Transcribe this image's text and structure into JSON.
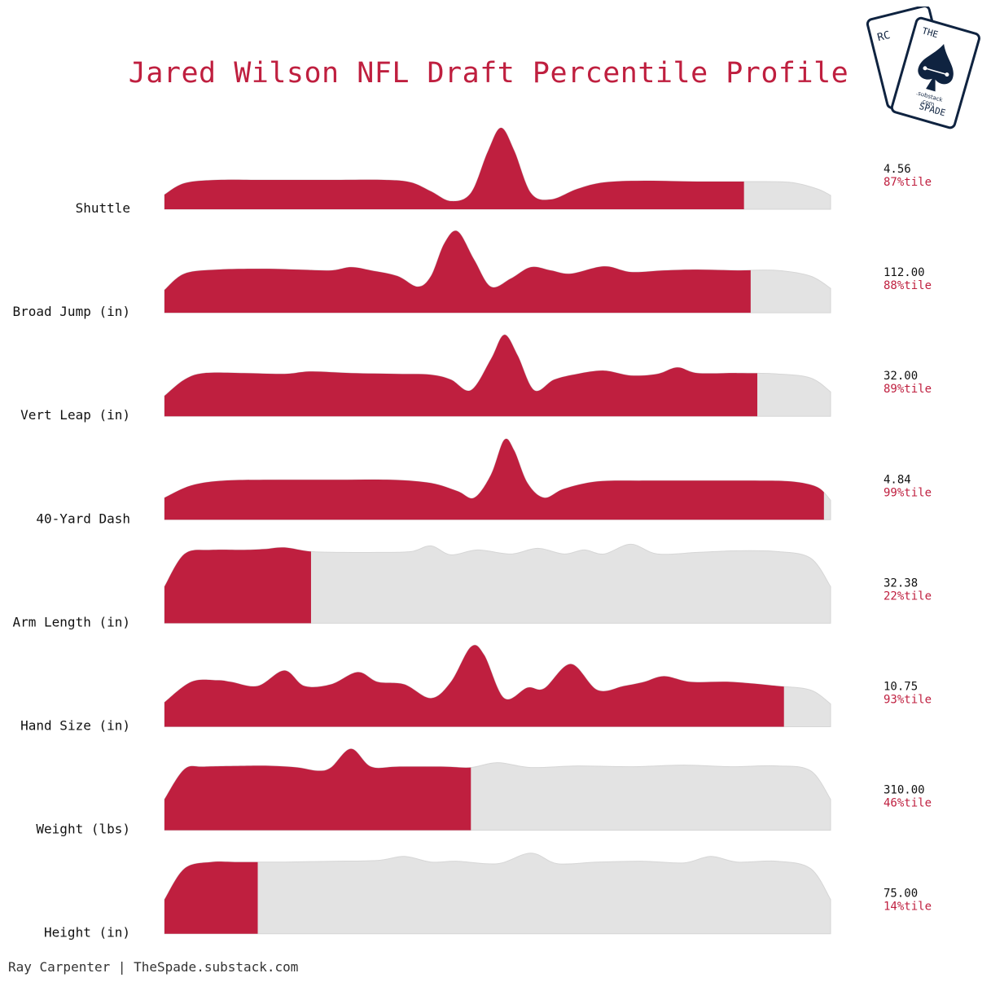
{
  "title": "Jared Wilson NFL Draft Percentile Profile",
  "credit": "Ray Carpenter | TheSpade.substack.com",
  "logo": {
    "text_the": "THE",
    "text_spade": "SPADE",
    "text_substack": ".substack",
    "text_com": ".com",
    "text_rc": "RC"
  },
  "colors": {
    "accent": "#bf1f3f",
    "background_fill": "#e3e3e3",
    "logo_navy": "#0f2340"
  },
  "chart_data": {
    "type": "ridgeline",
    "title": "Jared Wilson NFL Draft Percentile Profile",
    "metrics": [
      {
        "label": "Shuttle",
        "value": "4.56",
        "percentile": 87,
        "percentile_label": "87%tile",
        "density": [
          [
            0,
            0.18
          ],
          [
            0.03,
            0.32
          ],
          [
            0.08,
            0.36
          ],
          [
            0.15,
            0.36
          ],
          [
            0.25,
            0.36
          ],
          [
            0.33,
            0.36
          ],
          [
            0.37,
            0.33
          ],
          [
            0.4,
            0.22
          ],
          [
            0.43,
            0.1
          ],
          [
            0.46,
            0.2
          ],
          [
            0.485,
            0.7
          ],
          [
            0.505,
            1.0
          ],
          [
            0.525,
            0.72
          ],
          [
            0.55,
            0.2
          ],
          [
            0.58,
            0.12
          ],
          [
            0.62,
            0.25
          ],
          [
            0.66,
            0.33
          ],
          [
            0.72,
            0.35
          ],
          [
            0.8,
            0.34
          ],
          [
            0.88,
            0.34
          ],
          [
            0.94,
            0.33
          ],
          [
            0.98,
            0.25
          ],
          [
            1,
            0.17
          ]
        ]
      },
      {
        "label": "Broad Jump (in)",
        "value": "112.00",
        "percentile": 88,
        "percentile_label": "88%tile",
        "density": [
          [
            0,
            0.28
          ],
          [
            0.03,
            0.48
          ],
          [
            0.08,
            0.53
          ],
          [
            0.15,
            0.54
          ],
          [
            0.2,
            0.53
          ],
          [
            0.25,
            0.52
          ],
          [
            0.28,
            0.56
          ],
          [
            0.31,
            0.52
          ],
          [
            0.35,
            0.45
          ],
          [
            0.38,
            0.32
          ],
          [
            0.4,
            0.45
          ],
          [
            0.42,
            0.85
          ],
          [
            0.44,
            1.0
          ],
          [
            0.465,
            0.65
          ],
          [
            0.49,
            0.32
          ],
          [
            0.52,
            0.42
          ],
          [
            0.55,
            0.56
          ],
          [
            0.58,
            0.52
          ],
          [
            0.61,
            0.48
          ],
          [
            0.66,
            0.57
          ],
          [
            0.7,
            0.5
          ],
          [
            0.75,
            0.52
          ],
          [
            0.8,
            0.53
          ],
          [
            0.86,
            0.52
          ],
          [
            0.92,
            0.52
          ],
          [
            0.97,
            0.45
          ],
          [
            1,
            0.3
          ]
        ]
      },
      {
        "label": "Vert Leap (in)",
        "value": "32.00",
        "percentile": 89,
        "percentile_label": "89%tile",
        "density": [
          [
            0,
            0.25
          ],
          [
            0.03,
            0.45
          ],
          [
            0.06,
            0.53
          ],
          [
            0.12,
            0.53
          ],
          [
            0.18,
            0.52
          ],
          [
            0.22,
            0.55
          ],
          [
            0.28,
            0.53
          ],
          [
            0.35,
            0.52
          ],
          [
            0.4,
            0.51
          ],
          [
            0.43,
            0.45
          ],
          [
            0.46,
            0.32
          ],
          [
            0.49,
            0.7
          ],
          [
            0.51,
            1.0
          ],
          [
            0.53,
            0.75
          ],
          [
            0.555,
            0.32
          ],
          [
            0.585,
            0.45
          ],
          [
            0.62,
            0.52
          ],
          [
            0.66,
            0.56
          ],
          [
            0.7,
            0.5
          ],
          [
            0.74,
            0.52
          ],
          [
            0.77,
            0.6
          ],
          [
            0.8,
            0.53
          ],
          [
            0.86,
            0.53
          ],
          [
            0.92,
            0.52
          ],
          [
            0.97,
            0.47
          ],
          [
            1,
            0.3
          ]
        ]
      },
      {
        "label": "40-Yard Dash",
        "value": "4.84",
        "percentile": 99,
        "percentile_label": "99%tile",
        "density": [
          [
            0,
            0.27
          ],
          [
            0.04,
            0.42
          ],
          [
            0.09,
            0.48
          ],
          [
            0.17,
            0.49
          ],
          [
            0.26,
            0.49
          ],
          [
            0.34,
            0.49
          ],
          [
            0.4,
            0.45
          ],
          [
            0.44,
            0.35
          ],
          [
            0.465,
            0.27
          ],
          [
            0.49,
            0.55
          ],
          [
            0.51,
            0.98
          ],
          [
            0.525,
            0.85
          ],
          [
            0.545,
            0.45
          ],
          [
            0.57,
            0.27
          ],
          [
            0.6,
            0.38
          ],
          [
            0.65,
            0.47
          ],
          [
            0.72,
            0.48
          ],
          [
            0.8,
            0.48
          ],
          [
            0.88,
            0.48
          ],
          [
            0.94,
            0.47
          ],
          [
            0.98,
            0.4
          ],
          [
            1,
            0.24
          ]
        ]
      },
      {
        "label": "Arm Length (in)",
        "value": "32.38",
        "percentile": 22,
        "percentile_label": "22%tile",
        "density": [
          [
            0,
            0.45
          ],
          [
            0.03,
            0.85
          ],
          [
            0.07,
            0.9
          ],
          [
            0.12,
            0.9
          ],
          [
            0.15,
            0.91
          ],
          [
            0.18,
            0.93
          ],
          [
            0.22,
            0.88
          ],
          [
            0.27,
            0.87
          ],
          [
            0.32,
            0.87
          ],
          [
            0.37,
            0.88
          ],
          [
            0.4,
            0.95
          ],
          [
            0.43,
            0.84
          ],
          [
            0.47,
            0.9
          ],
          [
            0.52,
            0.85
          ],
          [
            0.56,
            0.92
          ],
          [
            0.6,
            0.85
          ],
          [
            0.63,
            0.9
          ],
          [
            0.66,
            0.85
          ],
          [
            0.7,
            0.97
          ],
          [
            0.74,
            0.85
          ],
          [
            0.8,
            0.87
          ],
          [
            0.86,
            0.89
          ],
          [
            0.92,
            0.88
          ],
          [
            0.97,
            0.8
          ],
          [
            1,
            0.45
          ]
        ]
      },
      {
        "label": "Hand Size (in)",
        "value": "10.75",
        "percentile": 93,
        "percentile_label": "93%tile",
        "density": [
          [
            0,
            0.3
          ],
          [
            0.04,
            0.55
          ],
          [
            0.08,
            0.57
          ],
          [
            0.1,
            0.55
          ],
          [
            0.14,
            0.5
          ],
          [
            0.18,
            0.69
          ],
          [
            0.21,
            0.5
          ],
          [
            0.25,
            0.52
          ],
          [
            0.29,
            0.67
          ],
          [
            0.32,
            0.55
          ],
          [
            0.36,
            0.52
          ],
          [
            0.4,
            0.35
          ],
          [
            0.43,
            0.55
          ],
          [
            0.46,
            0.98
          ],
          [
            0.48,
            0.88
          ],
          [
            0.51,
            0.35
          ],
          [
            0.545,
            0.48
          ],
          [
            0.57,
            0.47
          ],
          [
            0.61,
            0.77
          ],
          [
            0.65,
            0.45
          ],
          [
            0.69,
            0.5
          ],
          [
            0.72,
            0.55
          ],
          [
            0.75,
            0.62
          ],
          [
            0.79,
            0.55
          ],
          [
            0.85,
            0.55
          ],
          [
            0.92,
            0.5
          ],
          [
            0.97,
            0.45
          ],
          [
            1,
            0.28
          ]
        ]
      },
      {
        "label": "Weight (lbs)",
        "value": "310.00",
        "percentile": 46,
        "percentile_label": "46%tile",
        "density": [
          [
            0,
            0.38
          ],
          [
            0.03,
            0.75
          ],
          [
            0.06,
            0.78
          ],
          [
            0.12,
            0.79
          ],
          [
            0.16,
            0.79
          ],
          [
            0.2,
            0.77
          ],
          [
            0.23,
            0.73
          ],
          [
            0.25,
            0.77
          ],
          [
            0.28,
            1.0
          ],
          [
            0.31,
            0.78
          ],
          [
            0.35,
            0.78
          ],
          [
            0.42,
            0.78
          ],
          [
            0.46,
            0.77
          ],
          [
            0.5,
            0.83
          ],
          [
            0.55,
            0.77
          ],
          [
            0.62,
            0.79
          ],
          [
            0.7,
            0.78
          ],
          [
            0.78,
            0.8
          ],
          [
            0.85,
            0.78
          ],
          [
            0.92,
            0.79
          ],
          [
            0.97,
            0.73
          ],
          [
            1,
            0.38
          ]
        ]
      },
      {
        "label": "Height (in)",
        "value": "75.00",
        "percentile": 14,
        "percentile_label": "14%tile",
        "density": [
          [
            0,
            0.42
          ],
          [
            0.03,
            0.8
          ],
          [
            0.07,
            0.88
          ],
          [
            0.11,
            0.88
          ],
          [
            0.18,
            0.88
          ],
          [
            0.25,
            0.89
          ],
          [
            0.32,
            0.9
          ],
          [
            0.36,
            0.95
          ],
          [
            0.4,
            0.88
          ],
          [
            0.44,
            0.89
          ],
          [
            0.5,
            0.86
          ],
          [
            0.55,
            0.99
          ],
          [
            0.59,
            0.86
          ],
          [
            0.65,
            0.88
          ],
          [
            0.72,
            0.89
          ],
          [
            0.78,
            0.87
          ],
          [
            0.82,
            0.95
          ],
          [
            0.86,
            0.88
          ],
          [
            0.92,
            0.89
          ],
          [
            0.97,
            0.8
          ],
          [
            1,
            0.42
          ]
        ]
      }
    ]
  }
}
